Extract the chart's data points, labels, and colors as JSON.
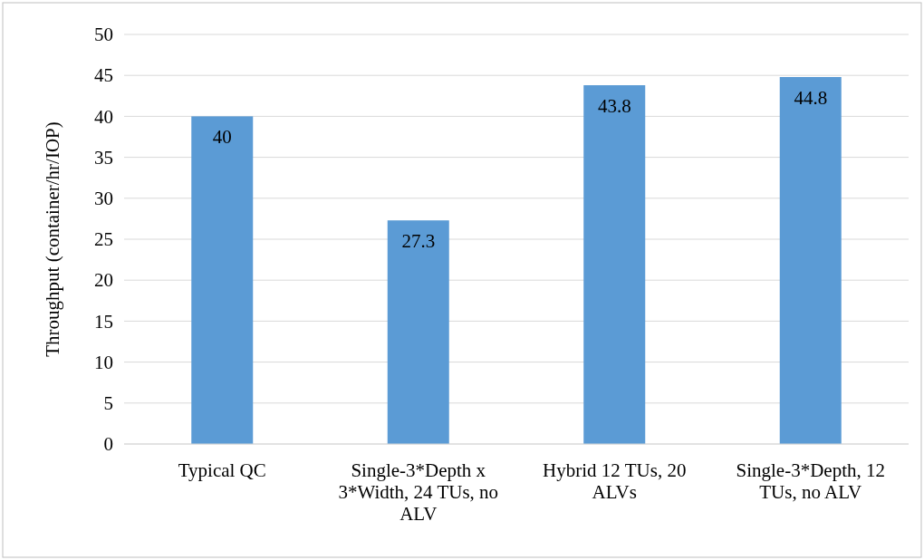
{
  "chart_data": {
    "type": "bar",
    "ylabel": "Throughput (container/hr/IOP)",
    "categories": [
      "Typical QC",
      "Single-3*Depth x 3*Width, 24 TUs, no ALV",
      "Hybrid 12 TUs, 20 ALVs",
      "Single-3*Depth, 12 TUs, no ALV"
    ],
    "values": [
      40,
      27.3,
      43.8,
      44.8
    ],
    "color": "#5b9bd5",
    "ylim": [
      0,
      50
    ],
    "yticks": [
      0,
      5,
      10,
      15,
      20,
      25,
      30,
      35,
      40,
      45,
      50
    ],
    "grid": "y",
    "data_labels": true
  }
}
